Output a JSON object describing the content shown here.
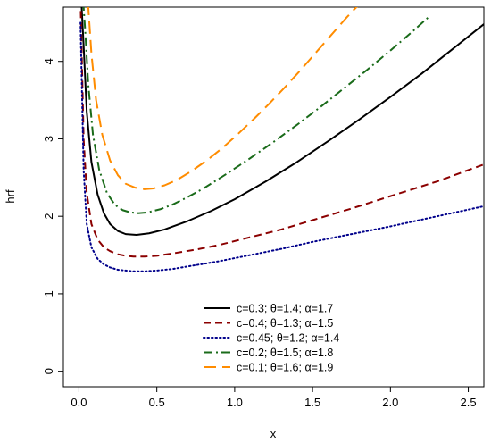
{
  "chart_data": {
    "type": "line",
    "title": "",
    "xlabel": "x",
    "ylabel": "hrf",
    "xlim": [
      -0.1,
      2.6
    ],
    "ylim": [
      -0.2,
      4.7
    ],
    "x_ticks": [
      0.0,
      0.5,
      1.0,
      1.5,
      2.0,
      2.5
    ],
    "x_tick_labels": [
      "0.0",
      "0.5",
      "1.0",
      "1.5",
      "2.0",
      "2.5"
    ],
    "y_ticks": [
      0,
      1,
      2,
      3,
      4
    ],
    "y_tick_labels": [
      "0",
      "1",
      "2",
      "3",
      "4"
    ],
    "grid": false,
    "legend_position": "bottom-center",
    "series": [
      {
        "name": "c=0.3; θ=1.4; α=1.7",
        "color": "#000000",
        "dash": "solid",
        "x": [
          0.01,
          0.03,
          0.05,
          0.08,
          0.12,
          0.16,
          0.2,
          0.25,
          0.3,
          0.37,
          0.45,
          0.55,
          0.7,
          0.85,
          1.0,
          1.2,
          1.4,
          1.6,
          1.8,
          2.0,
          2.2,
          2.4,
          2.6
        ],
        "y": [
          5.0,
          4.2,
          3.35,
          2.7,
          2.28,
          2.04,
          1.9,
          1.81,
          1.77,
          1.76,
          1.78,
          1.83,
          1.94,
          2.07,
          2.22,
          2.45,
          2.7,
          2.97,
          3.25,
          3.54,
          3.84,
          4.16,
          4.48
        ]
      },
      {
        "name": "c=0.4; θ=1.3; α=1.5",
        "color": "#8b0000",
        "dash": "dashed",
        "x": [
          0.01,
          0.03,
          0.05,
          0.08,
          0.12,
          0.16,
          0.2,
          0.25,
          0.3,
          0.35,
          0.42,
          0.5,
          0.6,
          0.75,
          0.9,
          1.1,
          1.3,
          1.5,
          1.75,
          2.0,
          2.3,
          2.6
        ],
        "y": [
          4.8,
          3.0,
          2.3,
          1.9,
          1.7,
          1.6,
          1.55,
          1.51,
          1.49,
          1.48,
          1.48,
          1.49,
          1.52,
          1.57,
          1.63,
          1.73,
          1.83,
          1.95,
          2.1,
          2.26,
          2.45,
          2.67
        ]
      },
      {
        "name": "c=0.45; θ=1.2; α=1.4",
        "color": "#00008b",
        "dash": "dotted",
        "x": [
          0.01,
          0.03,
          0.05,
          0.08,
          0.12,
          0.16,
          0.2,
          0.25,
          0.3,
          0.35,
          0.42,
          0.5,
          0.6,
          0.75,
          0.9,
          1.1,
          1.3,
          1.5,
          1.75,
          2.0,
          2.3,
          2.6
        ],
        "y": [
          4.5,
          2.6,
          1.9,
          1.6,
          1.45,
          1.38,
          1.34,
          1.31,
          1.3,
          1.29,
          1.29,
          1.3,
          1.32,
          1.37,
          1.42,
          1.5,
          1.58,
          1.67,
          1.77,
          1.87,
          2.0,
          2.13
        ]
      },
      {
        "name": "c=0.2; θ=1.5; α=1.8",
        "color": "#1a6b1a",
        "dash": "dashdot",
        "x": [
          0.02,
          0.04,
          0.06,
          0.09,
          0.13,
          0.18,
          0.23,
          0.28,
          0.33,
          0.38,
          0.44,
          0.52,
          0.6,
          0.7,
          0.8,
          0.95,
          1.1,
          1.25,
          1.4,
          1.55,
          1.7,
          1.85,
          2.0,
          2.15,
          2.25
        ],
        "y": [
          5.0,
          4.4,
          3.7,
          3.05,
          2.6,
          2.3,
          2.15,
          2.08,
          2.05,
          2.04,
          2.05,
          2.09,
          2.15,
          2.25,
          2.36,
          2.55,
          2.75,
          2.96,
          3.18,
          3.41,
          3.65,
          3.89,
          4.14,
          4.4,
          4.58
        ]
      },
      {
        "name": "c=0.1; θ=1.6; α=1.9",
        "color": "#ff8c00",
        "dash": "longdash",
        "x": [
          0.05,
          0.08,
          0.11,
          0.15,
          0.2,
          0.25,
          0.3,
          0.36,
          0.42,
          0.48,
          0.55,
          0.63,
          0.72,
          0.82,
          0.92,
          1.02,
          1.12,
          1.22,
          1.32,
          1.42,
          1.52,
          1.62,
          1.72,
          1.82
        ],
        "y": [
          5.0,
          4.1,
          3.5,
          3.05,
          2.72,
          2.53,
          2.42,
          2.37,
          2.35,
          2.36,
          2.4,
          2.47,
          2.58,
          2.72,
          2.88,
          3.06,
          3.25,
          3.45,
          3.66,
          3.88,
          4.11,
          4.34,
          4.57,
          4.78
        ]
      }
    ]
  }
}
